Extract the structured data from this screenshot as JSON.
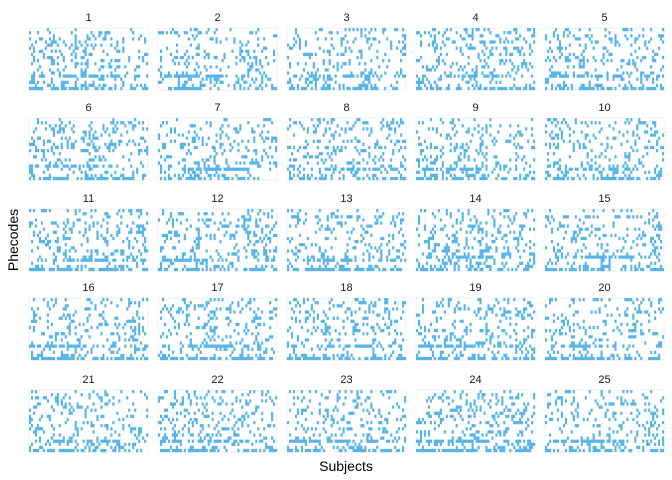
{
  "chart_data": {
    "type": "heatmap",
    "title": "",
    "xlabel": "Subjects",
    "ylabel": "Phecodes",
    "facet_labels": [
      "1",
      "2",
      "3",
      "4",
      "5",
      "6",
      "7",
      "8",
      "9",
      "10",
      "11",
      "12",
      "13",
      "14",
      "15",
      "16",
      "17",
      "18",
      "19",
      "20",
      "21",
      "22",
      "23",
      "24",
      "25"
    ],
    "facet_grid": {
      "rows": 5,
      "cols": 5
    },
    "n_subjects": 60,
    "n_phecodes": 20,
    "tile_color": "#56B4E9",
    "background": "#ffffff",
    "values": "binary presence (1 = subject has phecode); individual tile values are not printed in the figure"
  }
}
